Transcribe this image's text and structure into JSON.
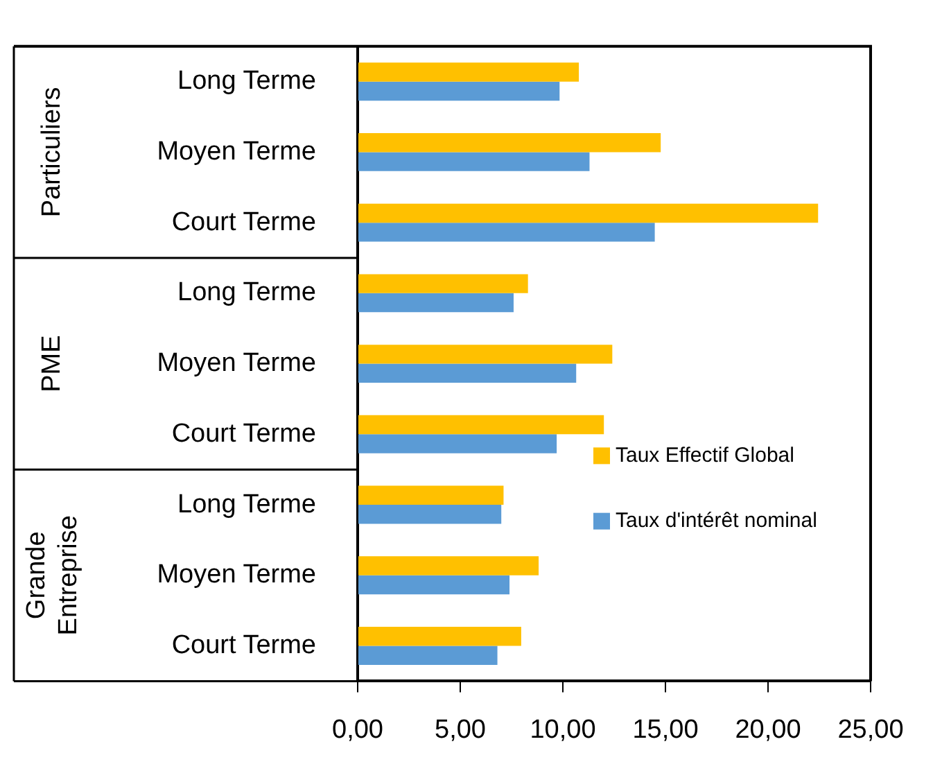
{
  "chart_data": {
    "type": "bar",
    "orientation": "horizontal",
    "categories": [
      "Long Terme",
      "Moyen Terme",
      "Court Terme",
      "Long Terme",
      "Moyen Terme",
      "Court Terme",
      "Long Terme",
      "Moyen Terme",
      "Court Terme"
    ],
    "series": [
      {
        "name": "Taux Effectif Global",
        "color": "#ffc000",
        "values": [
          10.78,
          14.77,
          22.44,
          8.3,
          12.41,
          12.0,
          7.11,
          8.82,
          7.97
        ]
      },
      {
        "name": "Taux d'intérêt nominal",
        "color": "#5b9bd5",
        "values": [
          9.84,
          11.3,
          14.48,
          7.6,
          10.65,
          9.7,
          7.0,
          7.4,
          6.81
        ]
      }
    ],
    "annotations": [
      "Particuliers",
      "PME",
      "Grande Entreprise"
    ],
    "xlim": [
      0,
      25
    ],
    "xticks": [
      {
        "value": 0,
        "label": "0,00"
      },
      {
        "value": 5,
        "label": "5,00"
      },
      {
        "value": 10,
        "label": "10,00"
      },
      {
        "value": 15,
        "label": "15,00"
      },
      {
        "value": 20,
        "label": "20,00"
      },
      {
        "value": 25,
        "label": "25,00"
      }
    ],
    "grid": false,
    "legend": "bottom right"
  }
}
